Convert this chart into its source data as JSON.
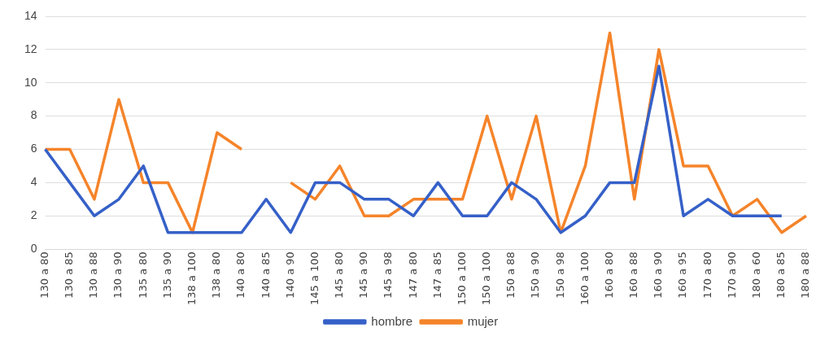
{
  "chart_data": {
    "type": "line",
    "categories": [
      "130 a 80",
      "130 a 85",
      "130 a 88",
      "130 a 90",
      "135 a 80",
      "135 a 90",
      "138 a 100",
      "138 a 80",
      "140 a 80",
      "140 a 85",
      "140 a 90",
      "145 a 100",
      "145 a 80",
      "145 a 90",
      "145 a 98",
      "147 a 80",
      "147 a 85",
      "150 a 100",
      "150 a 100",
      "150 a 88",
      "150 a 90",
      "150 a 98",
      "160 a 100",
      "160 a 80",
      "160 a 88",
      "160 a 90",
      "160 a 95",
      "170 a 80",
      "170 a 90",
      "180 a 60",
      "180 a 85",
      "180 a 88"
    ],
    "series": [
      {
        "name": "hombre",
        "color": "#3560c8",
        "values": [
          6,
          4,
          2,
          3,
          5,
          1,
          1,
          1,
          1,
          3,
          1,
          4,
          4,
          3,
          3,
          2,
          4,
          2,
          2,
          4,
          3,
          1,
          2,
          4,
          4,
          11,
          2,
          3,
          2,
          2,
          2,
          null
        ]
      },
      {
        "name": "mujer",
        "color": "#f5842a",
        "values": [
          6,
          6,
          3,
          9,
          4,
          4,
          1,
          7,
          6,
          null,
          4,
          3,
          5,
          2,
          2,
          3,
          3,
          3,
          8,
          3,
          8,
          1,
          5,
          13,
          3,
          12,
          5,
          5,
          2,
          3,
          1,
          2
        ]
      }
    ],
    "ylim": [
      0,
      14
    ],
    "yticks": [
      0,
      2,
      4,
      6,
      8,
      10,
      12,
      14
    ],
    "grid": "y",
    "legend": "bottom",
    "marker": "none",
    "line_style": "solid"
  }
}
